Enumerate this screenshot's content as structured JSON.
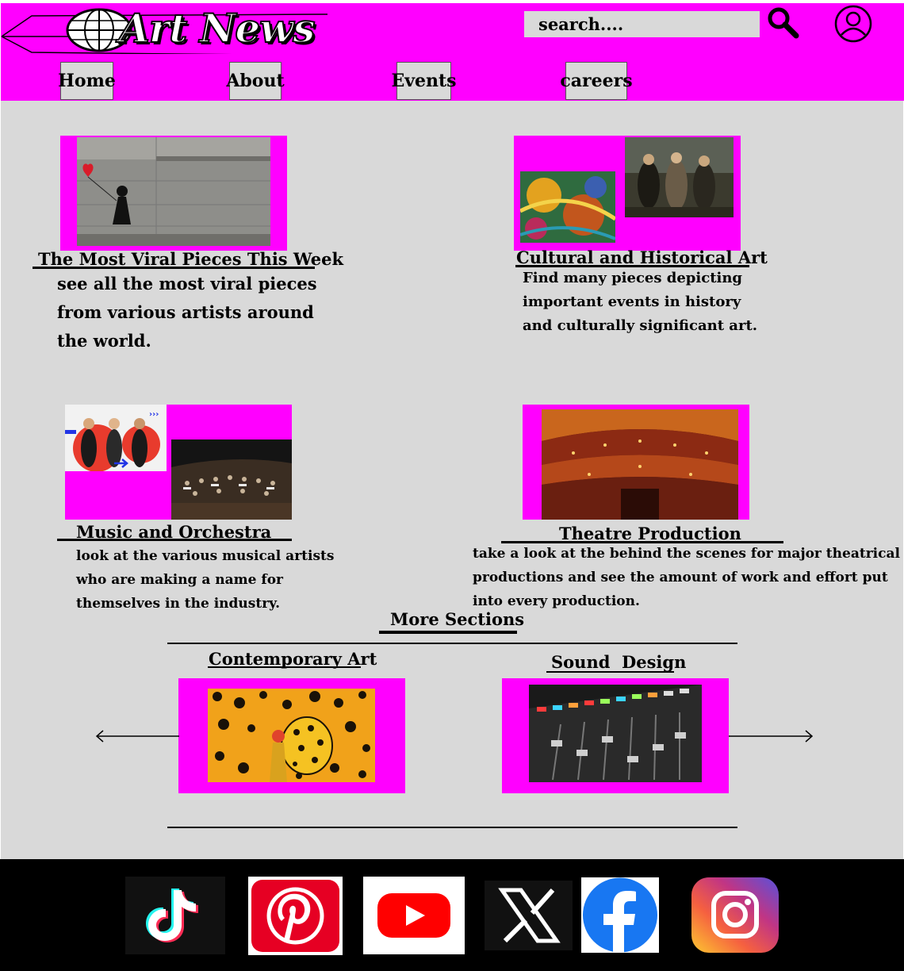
{
  "brand": {
    "logo_text": "Art News"
  },
  "search": {
    "placeholder": "search...."
  },
  "nav": {
    "home": "Home",
    "about": "About",
    "events": "Events",
    "careers": "careers"
  },
  "sections": {
    "viral": {
      "title": "The Most Viral Pieces This Week",
      "desc": [
        "see all the most viral pieces",
        "from various artists around",
        "the world."
      ]
    },
    "cultural": {
      "title": "Cultural and Historical Art",
      "desc": [
        "Find many pieces depicting",
        "important events in history",
        "and culturally significant art."
      ]
    },
    "music": {
      "title": "Music and Orchestra",
      "desc": [
        "look at the various musical artists",
        "who are making a name for",
        "themselves in the industry."
      ]
    },
    "theatre": {
      "title": "Theatre Production",
      "desc": [
        "take a look at the behind the scenes for major theatrical",
        "productions and see the amount of work and effort put",
        "into every production."
      ]
    }
  },
  "more": {
    "title": "More Sections",
    "items": [
      {
        "label": "Contemporary Art"
      },
      {
        "label": "Sound  Design"
      }
    ]
  },
  "colors": {
    "accent": "#ff00ff",
    "panel": "#d9d9d9",
    "footer": "#000000"
  },
  "social_icons": [
    "tiktok-icon",
    "pinterest-icon",
    "youtube-icon",
    "x-icon",
    "facebook-icon",
    "instagram-icon"
  ]
}
